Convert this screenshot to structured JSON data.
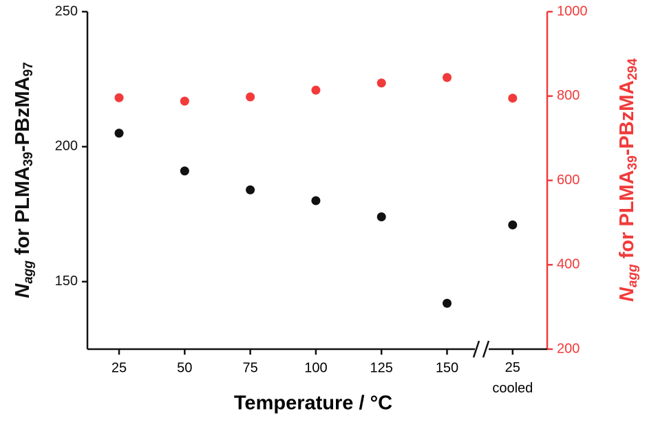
{
  "chart_data": {
    "type": "scatter",
    "xlabel": "Temperature / °C",
    "ylabel": [
      "N",
      "agg",
      " for PLMA",
      "39",
      "-PBzMA",
      "97"
    ],
    "y2label": [
      "N",
      "agg",
      " for PLMA",
      "39",
      "-PBzMA",
      "294"
    ],
    "categories": [
      "25",
      "50",
      "75",
      "100",
      "125",
      "150",
      "25\ncooled"
    ],
    "series": [
      {
        "name": "PLMA39-PBzMA97",
        "color": "#111111",
        "values": [
          205,
          191,
          184,
          180,
          174,
          142,
          171
        ]
      },
      {
        "name": "PLMA39-PBzMA294",
        "color": "#f23a3a",
        "axis": "y2",
        "values": [
          796,
          788,
          798,
          814,
          831,
          844,
          795
        ]
      }
    ],
    "ylim": [
      125,
      250
    ],
    "yticks": [
      150,
      200,
      250
    ],
    "y2lim": [
      200,
      1000
    ],
    "y2ticks": [
      200,
      400,
      600,
      800,
      1000
    ],
    "y2color": "#f23a3a"
  }
}
